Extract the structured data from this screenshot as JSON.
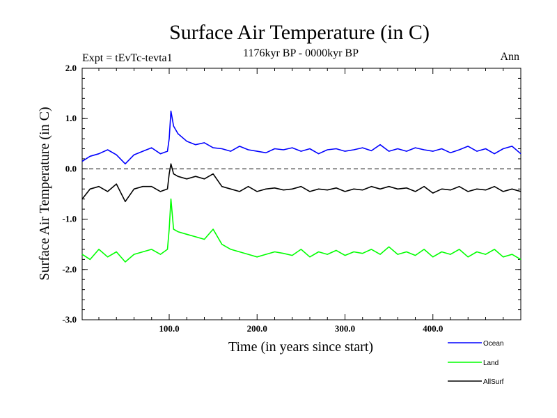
{
  "chart_data": {
    "type": "line",
    "title": "Surface Air Temperature (in C)",
    "subtitle_left": "Expt = tEvTc-tevta1",
    "subtitle_center": "1176kyr BP - 0000kyr BP",
    "subtitle_right": "Ann",
    "xlabel": "Time (in years since start)",
    "ylabel": "Surface Air Temperature (in C)",
    "xlim": [
      1,
      500
    ],
    "ylim": [
      -3.0,
      2.0
    ],
    "xticks": [
      100,
      200,
      300,
      400
    ],
    "xtick_labels": [
      "100.0",
      "200.0",
      "300.0",
      "400.0"
    ],
    "yticks": [
      2.0,
      1.0,
      0.0,
      -1.0,
      -2.0,
      -3.0
    ],
    "ytick_labels": [
      "2.0",
      "1.0",
      "0.0",
      "-1.0",
      "-2.0",
      "-3.0"
    ],
    "reference_line": 0.0,
    "legend_position": "bottom-right, below plot",
    "x": [
      1,
      10,
      20,
      30,
      40,
      50,
      60,
      70,
      80,
      90,
      98,
      100,
      102,
      105,
      110,
      120,
      130,
      140,
      150,
      160,
      170,
      180,
      190,
      200,
      210,
      220,
      230,
      240,
      250,
      260,
      270,
      280,
      290,
      300,
      310,
      320,
      330,
      340,
      350,
      360,
      370,
      380,
      390,
      400,
      410,
      420,
      430,
      440,
      450,
      460,
      470,
      480,
      490,
      500
    ],
    "series": [
      {
        "name": "Ocean",
        "color": "#0000ff",
        "values": [
          0.15,
          0.25,
          0.3,
          0.38,
          0.28,
          0.1,
          0.28,
          0.35,
          0.42,
          0.3,
          0.35,
          0.6,
          1.15,
          0.85,
          0.7,
          0.55,
          0.48,
          0.52,
          0.42,
          0.4,
          0.35,
          0.45,
          0.38,
          0.35,
          0.32,
          0.4,
          0.38,
          0.42,
          0.35,
          0.4,
          0.3,
          0.38,
          0.4,
          0.35,
          0.38,
          0.42,
          0.36,
          0.48,
          0.35,
          0.4,
          0.35,
          0.42,
          0.38,
          0.35,
          0.4,
          0.32,
          0.38,
          0.45,
          0.35,
          0.4,
          0.3,
          0.4,
          0.45,
          0.3
        ]
      },
      {
        "name": "Land",
        "color": "#00ff00",
        "values": [
          -1.7,
          -1.8,
          -1.6,
          -1.75,
          -1.65,
          -1.85,
          -1.7,
          -1.65,
          -1.6,
          -1.7,
          -1.6,
          -1.2,
          -0.6,
          -1.2,
          -1.25,
          -1.3,
          -1.35,
          -1.4,
          -1.2,
          -1.5,
          -1.6,
          -1.65,
          -1.7,
          -1.75,
          -1.7,
          -1.65,
          -1.68,
          -1.72,
          -1.6,
          -1.75,
          -1.65,
          -1.7,
          -1.62,
          -1.72,
          -1.65,
          -1.68,
          -1.6,
          -1.7,
          -1.55,
          -1.7,
          -1.65,
          -1.72,
          -1.6,
          -1.75,
          -1.65,
          -1.7,
          -1.6,
          -1.75,
          -1.65,
          -1.7,
          -1.6,
          -1.75,
          -1.7,
          -1.8
        ]
      },
      {
        "name": "AllSurf",
        "color": "#000000",
        "values": [
          -0.6,
          -0.4,
          -0.35,
          -0.45,
          -0.3,
          -0.65,
          -0.4,
          -0.35,
          -0.35,
          -0.45,
          -0.4,
          -0.1,
          0.1,
          -0.1,
          -0.15,
          -0.2,
          -0.15,
          -0.2,
          -0.1,
          -0.35,
          -0.4,
          -0.45,
          -0.35,
          -0.45,
          -0.4,
          -0.38,
          -0.42,
          -0.4,
          -0.35,
          -0.45,
          -0.4,
          -0.42,
          -0.38,
          -0.45,
          -0.4,
          -0.42,
          -0.35,
          -0.4,
          -0.35,
          -0.4,
          -0.38,
          -0.45,
          -0.35,
          -0.48,
          -0.4,
          -0.42,
          -0.35,
          -0.45,
          -0.4,
          -0.42,
          -0.35,
          -0.45,
          -0.4,
          -0.45
        ]
      }
    ]
  }
}
